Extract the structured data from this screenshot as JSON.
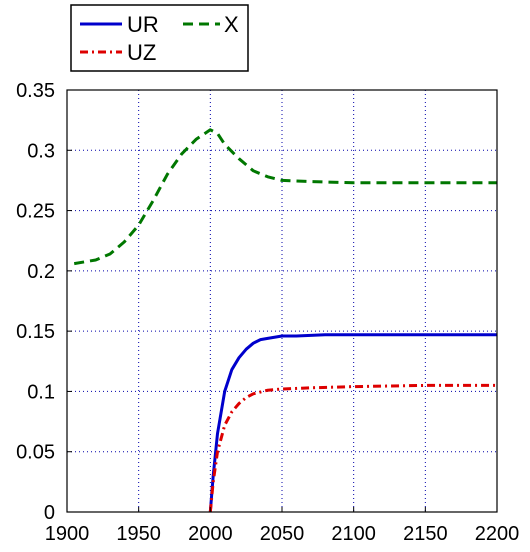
{
  "chart_data": {
    "type": "line",
    "title": "",
    "xlabel": "",
    "ylabel": "",
    "xlim": [
      1900,
      2200
    ],
    "ylim": [
      0,
      0.35
    ],
    "x_ticks": [
      1900,
      1950,
      2000,
      2050,
      2100,
      2150,
      2200
    ],
    "x_tick_labels": [
      "1900",
      "1950",
      "2000",
      "2050",
      "2100",
      "2150",
      "2200"
    ],
    "y_ticks": [
      0,
      0.05,
      0.1,
      0.15,
      0.2,
      0.25,
      0.3,
      0.35
    ],
    "y_tick_labels": [
      "0",
      "0.05",
      "0.1",
      "0.15",
      "0.2",
      "0.25",
      "0.3",
      "0.35"
    ],
    "grid": true,
    "legend_position": "top-left, outside plot",
    "series": [
      {
        "name": "UR",
        "color": "#0000cc",
        "line_style": "solid",
        "points": [
          [
            2000,
            0
          ],
          [
            2002,
            0.03
          ],
          [
            2005,
            0.065
          ],
          [
            2010,
            0.1
          ],
          [
            2015,
            0.118
          ],
          [
            2020,
            0.128
          ],
          [
            2025,
            0.135
          ],
          [
            2030,
            0.14
          ],
          [
            2035,
            0.143
          ],
          [
            2040,
            0.144
          ],
          [
            2050,
            0.146
          ],
          [
            2060,
            0.146
          ],
          [
            2080,
            0.147
          ],
          [
            2100,
            0.147
          ],
          [
            2150,
            0.147
          ],
          [
            2200,
            0.147
          ]
        ]
      },
      {
        "name": "UZ",
        "color": "#dd0000",
        "line_style": "dash-dot",
        "points": [
          [
            2000,
            0
          ],
          [
            2002,
            0.025
          ],
          [
            2005,
            0.05
          ],
          [
            2010,
            0.072
          ],
          [
            2015,
            0.083
          ],
          [
            2020,
            0.09
          ],
          [
            2025,
            0.095
          ],
          [
            2030,
            0.098
          ],
          [
            2040,
            0.101
          ],
          [
            2050,
            0.102
          ],
          [
            2070,
            0.103
          ],
          [
            2100,
            0.104
          ],
          [
            2150,
            0.105
          ],
          [
            2200,
            0.105
          ]
        ]
      },
      {
        "name": "X",
        "color": "#007700",
        "line_style": "dashed",
        "points": [
          [
            1905,
            0.206
          ],
          [
            1920,
            0.209
          ],
          [
            1930,
            0.214
          ],
          [
            1940,
            0.224
          ],
          [
            1950,
            0.238
          ],
          [
            1960,
            0.258
          ],
          [
            1970,
            0.28
          ],
          [
            1980,
            0.297
          ],
          [
            1990,
            0.309
          ],
          [
            2000,
            0.317
          ],
          [
            2005,
            0.314
          ],
          [
            2010,
            0.305
          ],
          [
            2020,
            0.293
          ],
          [
            2030,
            0.283
          ],
          [
            2040,
            0.278
          ],
          [
            2050,
            0.275
          ],
          [
            2070,
            0.274
          ],
          [
            2100,
            0.273
          ],
          [
            2150,
            0.273
          ],
          [
            2200,
            0.273
          ]
        ]
      }
    ]
  }
}
